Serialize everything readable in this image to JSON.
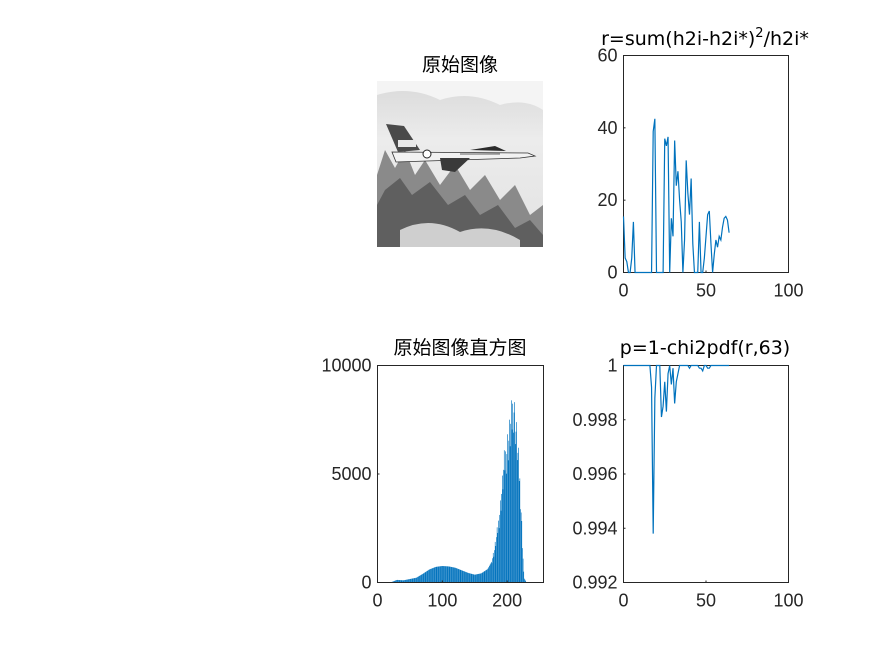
{
  "figure": {
    "panels": {
      "image": {
        "title": "原始图像"
      },
      "r_plot": {
        "title_main": "r=sum(h2i-h2i*)",
        "title_sup": "2",
        "title_tail": "/h2i*"
      },
      "hist": {
        "title": "原始图像直方图"
      },
      "p_plot": {
        "title": "p=1-chi2pdf(r,63)"
      }
    },
    "colors": {
      "series": "#0072BD",
      "axes": "#262626"
    }
  },
  "chart_data": [
    {
      "type": "image",
      "title": "原始图像",
      "description_visible": "grayscale photo of a jet over mountains"
    },
    {
      "type": "line",
      "title": "r=sum(h2i-h2i*)^2/h2i*",
      "xlim": [
        0,
        100
      ],
      "ylim": [
        0,
        60
      ],
      "xticks": [
        0,
        50,
        100
      ],
      "yticks": [
        0,
        20,
        40,
        60
      ],
      "series": [
        {
          "x": [
            0,
            1,
            2,
            3,
            4,
            5,
            6,
            7,
            8,
            9,
            10,
            11,
            12,
            13,
            14,
            15,
            16,
            17,
            18,
            19,
            20,
            21,
            22,
            23,
            24,
            25,
            26,
            27,
            28,
            29,
            30,
            31,
            32,
            33,
            34,
            35,
            36,
            37,
            38,
            39,
            40,
            41,
            42,
            43,
            44,
            45,
            46,
            47,
            48,
            49,
            50,
            51,
            52,
            53,
            54,
            55,
            56,
            57,
            58,
            59,
            60,
            61,
            62,
            63,
            64
          ],
          "y": [
            15.5,
            4,
            3,
            0,
            0,
            4,
            14,
            0,
            0,
            0,
            0,
            0,
            0,
            0,
            0,
            0,
            0,
            0,
            39,
            42.5,
            0,
            0,
            0,
            0,
            0,
            37,
            35,
            37.5,
            0,
            15,
            10,
            36.5,
            24,
            28,
            20,
            14,
            0,
            9,
            31,
            22,
            16,
            26,
            8,
            0,
            0,
            0,
            14,
            0,
            0,
            4,
            10,
            16,
            17,
            8,
            0,
            5,
            9,
            7,
            10,
            9,
            12.5,
            15,
            15.5,
            14.5,
            11
          ]
        }
      ]
    },
    {
      "type": "bar",
      "title": "原始图像直方图",
      "xlim": [
        0,
        256
      ],
      "ylim": [
        0,
        10000
      ],
      "xticks": [
        0,
        100,
        200
      ],
      "yticks": [
        0,
        5000,
        10000
      ],
      "profile": [
        [
          0,
          0
        ],
        [
          10,
          0
        ],
        [
          20,
          0
        ],
        [
          25,
          60
        ],
        [
          30,
          120
        ],
        [
          40,
          100
        ],
        [
          50,
          160
        ],
        [
          60,
          220
        ],
        [
          70,
          400
        ],
        [
          80,
          600
        ],
        [
          90,
          720
        ],
        [
          100,
          760
        ],
        [
          110,
          740
        ],
        [
          120,
          680
        ],
        [
          130,
          560
        ],
        [
          140,
          440
        ],
        [
          150,
          360
        ],
        [
          160,
          420
        ],
        [
          170,
          620
        ],
        [
          175,
          900
        ],
        [
          180,
          1400
        ],
        [
          185,
          2300
        ],
        [
          190,
          3600
        ],
        [
          195,
          5200
        ],
        [
          200,
          6200
        ],
        [
          203,
          6600
        ],
        [
          206,
          7200
        ],
        [
          208,
          7600
        ],
        [
          210,
          8300
        ],
        [
          212,
          7400
        ],
        [
          214,
          6800
        ],
        [
          216,
          6000
        ],
        [
          218,
          5200
        ],
        [
          220,
          4300
        ],
        [
          222,
          3000
        ],
        [
          224,
          1400
        ],
        [
          226,
          200
        ],
        [
          230,
          0
        ],
        [
          256,
          0
        ]
      ]
    },
    {
      "type": "line",
      "title": "p=1-chi2pdf(r,63)",
      "xlim": [
        0,
        100
      ],
      "ylim": [
        0.992,
        1
      ],
      "xticks": [
        0,
        50,
        100
      ],
      "yticks": [
        0.992,
        0.994,
        0.996,
        0.998,
        1
      ],
      "series": [
        {
          "x": [
            0,
            1,
            2,
            3,
            4,
            5,
            6,
            7,
            8,
            9,
            10,
            11,
            12,
            13,
            14,
            15,
            16,
            17,
            18,
            19,
            20,
            21,
            22,
            23,
            24,
            25,
            26,
            27,
            28,
            29,
            30,
            31,
            32,
            33,
            34,
            35,
            36,
            37,
            38,
            39,
            40,
            41,
            42,
            43,
            44,
            45,
            46,
            47,
            48,
            49,
            50,
            51,
            52,
            53,
            54,
            55,
            56,
            57,
            58,
            59,
            60,
            61,
            62,
            63,
            64
          ],
          "y": [
            1,
            1,
            1,
            1,
            1,
            1,
            1,
            1,
            1,
            1,
            1,
            1,
            1,
            1,
            1,
            1,
            1,
            0.9992,
            0.9938,
            0.9988,
            1,
            1,
            1,
            0.9981,
            0.9985,
            0.9994,
            0.9983,
            0.9997,
            1,
            0.9993,
            0.9999,
            0.9986,
            0.9994,
            0.9997,
            1,
            1,
            1,
            1,
            1,
            1,
            0.9999,
            1,
            1,
            1,
            1,
            1,
            0.9999,
            0.9999,
            0.9998,
            1,
            1,
            0.9999,
            0.9999,
            1,
            1,
            1,
            1,
            1,
            1,
            1,
            1,
            1,
            1,
            1,
            1
          ]
        }
      ]
    }
  ]
}
